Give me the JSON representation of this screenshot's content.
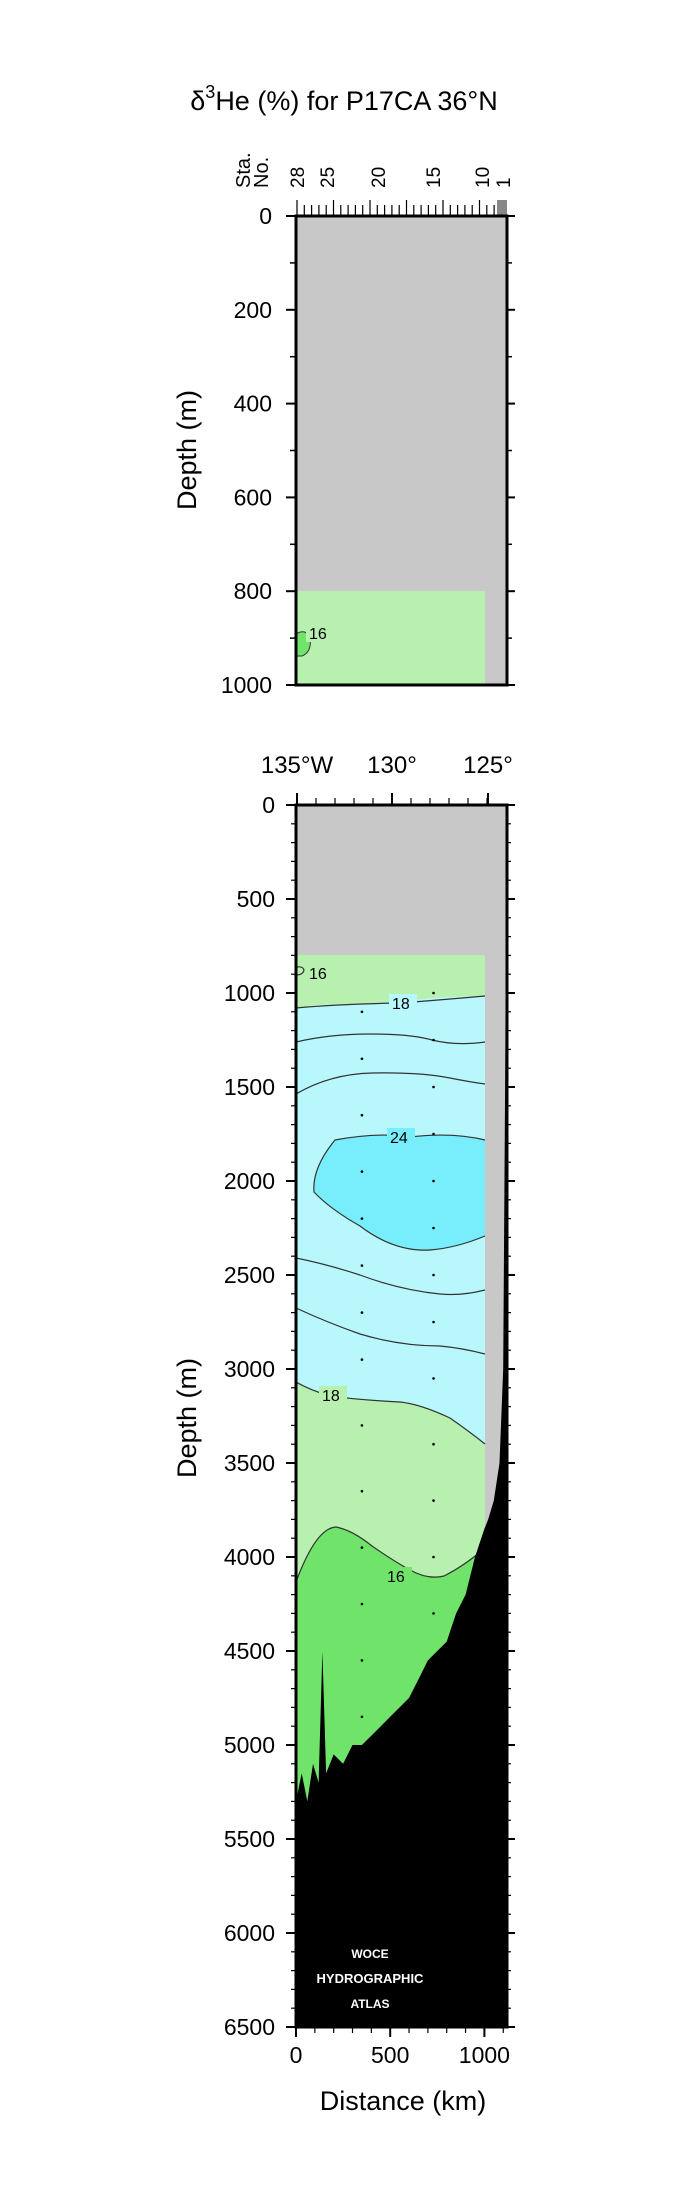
{
  "figure": {
    "title_prefix": "δ",
    "title_sup": "3",
    "title_rest": "He (%) for P17CA 36°N",
    "station_label_top": "Sta.",
    "station_label_bottom": "No.",
    "station_ticks": [
      "28",
      "25",
      "20",
      "15",
      "10",
      "1"
    ],
    "lon_labels": [
      "135°W",
      "130°",
      "125°"
    ],
    "watermark": [
      "WOCE",
      "HYDROGRAPHIC",
      "ATLAS"
    ]
  },
  "colors": {
    "no_data": "#c8c8c8",
    "range_14_16": "#70e46a",
    "range_16_18": "#b8f0b0",
    "range_18_24": "#b8f8fc",
    "range_24_plus": "#78eefc",
    "bottom": "#000000",
    "contour": "#333333"
  },
  "chart_data": [
    {
      "type": "contour",
      "panel": "upper",
      "title": "",
      "xlabel": "",
      "ylabel": "Depth (m)",
      "xlim": [
        0,
        1120
      ],
      "ylim": [
        1000,
        0
      ],
      "yticks": [
        0,
        200,
        400,
        600,
        800,
        1000
      ],
      "sampled_depth_min": 800,
      "sampled_distance_max": 1000,
      "contour_labels": [
        {
          "text": "16",
          "x": 120,
          "y": 890
        }
      ]
    },
    {
      "type": "contour",
      "panel": "lower",
      "title": "",
      "xlabel": "Distance (km)",
      "ylabel": "Depth (m)",
      "xlim": [
        0,
        1120
      ],
      "ylim": [
        6500,
        0
      ],
      "xticks": [
        0,
        500,
        1000
      ],
      "yticks": [
        0,
        500,
        1000,
        1500,
        2000,
        2500,
        3000,
        3500,
        4000,
        4500,
        5000,
        5500,
        6000,
        6500
      ],
      "contour_levels": [
        16,
        18,
        20,
        22,
        24
      ],
      "contour_labels": [
        {
          "text": "16",
          "x": 130,
          "y": 900
        },
        {
          "text": "18",
          "x": 570,
          "y": 1080
        },
        {
          "text": "24",
          "x": 550,
          "y": 1780
        },
        {
          "text": "18",
          "x": 190,
          "y": 3120
        },
        {
          "text": "16",
          "x": 540,
          "y": 4070
        }
      ],
      "stations": [
        {
          "x": 350,
          "depths": [
            1100,
            1350,
            1650,
            1950,
            2200,
            2450,
            2700,
            2950,
            3300,
            3650,
            3950,
            4250,
            4550,
            4850
          ]
        },
        {
          "x": 730,
          "depths": [
            1000,
            1250,
            1500,
            1750,
            2000,
            2250,
            2500,
            2750,
            3050,
            3400,
            3700,
            4000,
            4300
          ]
        }
      ],
      "bathymetry": [
        [
          0,
          5300
        ],
        [
          30,
          5150
        ],
        [
          60,
          5300
        ],
        [
          90,
          5100
        ],
        [
          120,
          5200
        ],
        [
          140,
          4500
        ],
        [
          160,
          5150
        ],
        [
          200,
          5050
        ],
        [
          250,
          5100
        ],
        [
          300,
          5000
        ],
        [
          350,
          5000
        ],
        [
          400,
          4950
        ],
        [
          450,
          4900
        ],
        [
          500,
          4850
        ],
        [
          550,
          4800
        ],
        [
          600,
          4750
        ],
        [
          650,
          4650
        ],
        [
          700,
          4550
        ],
        [
          750,
          4500
        ],
        [
          800,
          4450
        ],
        [
          850,
          4300
        ],
        [
          900,
          4200
        ],
        [
          950,
          4000
        ],
        [
          1000,
          3850
        ],
        [
          1020,
          3800
        ],
        [
          1050,
          3700
        ],
        [
          1080,
          3500
        ],
        [
          1100,
          3000
        ],
        [
          1110,
          1500
        ],
        [
          1115,
          500
        ],
        [
          1120,
          0
        ]
      ]
    }
  ]
}
